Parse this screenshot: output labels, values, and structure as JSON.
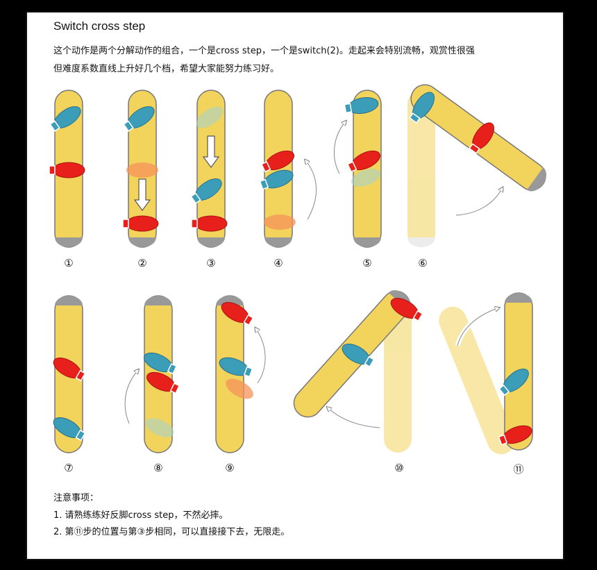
{
  "title": "Switch cross step",
  "intro": [
    "这个动作是两个分解动作的组合，一个是cross step，一个是switch(2)。走起来会特别流畅，观赏性很强",
    "但难度系数直线上升好几个档，希望大家能努力练习好。"
  ],
  "step_numbers": [
    "①",
    "②",
    "③",
    "④",
    "⑤",
    "⑥",
    "⑦",
    "⑧",
    "⑨",
    "⑩",
    "⑪"
  ],
  "notes_title": "注意事项：",
  "notes": [
    "1. 请熟练练好反脚cross step，不然必摔。",
    "2. 第⑪步的位置与第③步相同，可以直接接下去，无限走。"
  ],
  "colors": {
    "board": "#f2d45c",
    "board_ghost": "#f8ebc0",
    "tail": "#999999",
    "left_foot": "#3b9db8",
    "right_foot": "#e8201c",
    "ghost_left": "#a9d2c8",
    "ghost_right": "#f5935a",
    "frame_bg": "#000000"
  }
}
